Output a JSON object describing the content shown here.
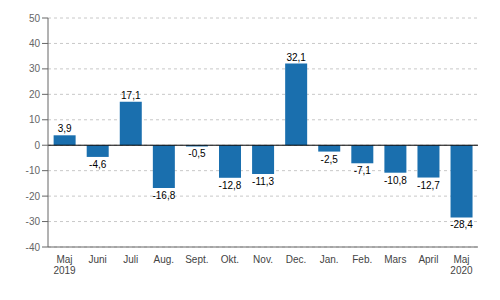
{
  "chart_data": {
    "type": "bar",
    "categories": [
      "Maj\n2019",
      "Juni",
      "Juli",
      "Aug.",
      "Sept.",
      "Okt.",
      "Nov.",
      "Dec.",
      "Jan.",
      "Feb.",
      "Mars",
      "April",
      "Maj\n2020"
    ],
    "values": [
      3.9,
      -4.6,
      17.1,
      -16.8,
      -0.5,
      -12.8,
      -11.3,
      32.1,
      -2.5,
      -7.1,
      -10.8,
      -12.7,
      -28.4
    ],
    "value_labels": [
      "3,9",
      "-4,6",
      "17,1",
      "-16,8",
      "-0,5",
      "-12,8",
      "-11,3",
      "32,1",
      "-2,5",
      "-7,1",
      "-10,8",
      "-12,7",
      "-28,4"
    ],
    "color": "#1a6fae",
    "ylim": [
      -40,
      50
    ],
    "yticks": [
      -40,
      -30,
      -20,
      -10,
      0,
      10,
      20,
      30,
      40,
      50
    ],
    "grid": true,
    "data_labels": true
  }
}
